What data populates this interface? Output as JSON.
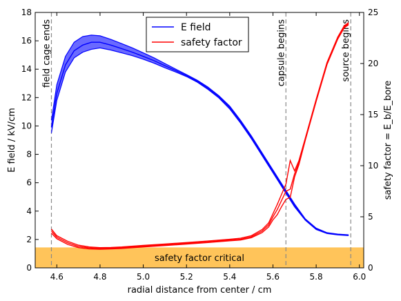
{
  "chart_data": {
    "type": "line",
    "xlabel": "radial distance from center / cm",
    "ylabel_left": "E field / kV/cm",
    "ylabel_right": "safety factor = E_b/E_bore",
    "xlim": [
      4.5,
      6.02
    ],
    "ylim_left": [
      0,
      18
    ],
    "ylim_right": [
      0,
      25
    ],
    "x_ticks": [
      4.6,
      4.8,
      5.0,
      5.2,
      5.4,
      5.6,
      5.8,
      6.0
    ],
    "x_tick_labels": [
      "4.6",
      "4.8",
      "5.0",
      "5.2",
      "5.4",
      "5.6",
      "5.8",
      "6.0"
    ],
    "y_ticks_left": [
      0,
      2,
      4,
      6,
      8,
      10,
      12,
      14,
      16,
      18
    ],
    "y_ticks_right": [
      0,
      5,
      10,
      15,
      20,
      25
    ],
    "legend_position": "top-center",
    "grid": false,
    "series": [
      {
        "name": "E field",
        "axis": "left",
        "color": "#0000ff",
        "band_color": "#6a6aff",
        "x": [
          4.575,
          4.6,
          4.64,
          4.68,
          4.72,
          4.76,
          4.8,
          4.85,
          4.9,
          4.95,
          5.0,
          5.05,
          5.1,
          5.15,
          5.2,
          5.25,
          5.3,
          5.35,
          5.4,
          5.45,
          5.5,
          5.55,
          5.6,
          5.65,
          5.7,
          5.75,
          5.8,
          5.85,
          5.9,
          5.95
        ],
        "y": [
          9.9,
          12.3,
          14.3,
          15.3,
          15.7,
          15.9,
          15.9,
          15.7,
          15.45,
          15.2,
          14.9,
          14.6,
          14.25,
          13.9,
          13.55,
          13.15,
          12.65,
          12.05,
          11.3,
          10.3,
          9.2,
          8.0,
          6.8,
          5.6,
          4.4,
          3.4,
          2.75,
          2.45,
          2.35,
          2.3
        ],
        "y_low": [
          9.5,
          11.8,
          13.8,
          14.8,
          15.2,
          15.4,
          15.5,
          15.35,
          15.15,
          14.95,
          14.7,
          14.42,
          14.1,
          13.8,
          13.48,
          13.08,
          12.57,
          11.97,
          11.2,
          10.2,
          9.1,
          7.9,
          6.7,
          5.5,
          4.3,
          3.35,
          2.7,
          2.42,
          2.32,
          2.27
        ],
        "y_high": [
          10.4,
          12.9,
          14.9,
          15.9,
          16.3,
          16.4,
          16.35,
          16.1,
          15.8,
          15.5,
          15.15,
          14.8,
          14.4,
          14.0,
          13.62,
          13.22,
          12.73,
          12.13,
          11.4,
          10.4,
          9.3,
          8.1,
          6.9,
          5.7,
          4.5,
          3.45,
          2.8,
          2.48,
          2.38,
          2.33
        ]
      },
      {
        "name": "safety factor",
        "axis": "right",
        "color": "#ff0000",
        "x": [
          4.575,
          4.6,
          4.65,
          4.7,
          4.75,
          4.8,
          4.85,
          4.9,
          5.0,
          5.1,
          5.2,
          5.3,
          5.4,
          5.45,
          5.5,
          5.55,
          5.58,
          5.6,
          5.62,
          5.64,
          5.66,
          5.68,
          5.7,
          5.72,
          5.75,
          5.8,
          5.85,
          5.9,
          5.93,
          5.95
        ],
        "y": [
          3.6,
          3.0,
          2.45,
          2.1,
          1.95,
          1.9,
          1.92,
          1.97,
          2.12,
          2.25,
          2.4,
          2.55,
          2.72,
          2.8,
          3.05,
          3.6,
          4.2,
          5.0,
          5.7,
          6.6,
          7.5,
          7.7,
          9.2,
          10.3,
          12.6,
          16.4,
          20.0,
          22.5,
          23.6,
          23.9
        ],
        "y_low": [
          3.4,
          2.85,
          2.3,
          1.98,
          1.85,
          1.82,
          1.85,
          1.9,
          2.05,
          2.18,
          2.33,
          2.48,
          2.65,
          2.72,
          2.95,
          3.45,
          4.0,
          4.7,
          5.2,
          6.0,
          6.7,
          6.9,
          8.9,
          10.1,
          12.5,
          16.3,
          19.9,
          22.4,
          23.5,
          23.8
        ],
        "y_high": [
          3.8,
          3.15,
          2.6,
          2.22,
          2.05,
          1.98,
          2.0,
          2.05,
          2.2,
          2.33,
          2.48,
          2.63,
          2.8,
          2.9,
          3.15,
          3.75,
          4.4,
          5.3,
          6.2,
          7.2,
          8.2,
          10.5,
          9.5,
          10.5,
          12.7,
          16.5,
          20.1,
          22.6,
          23.7,
          24.0
        ]
      }
    ],
    "critical_band": {
      "label": "safety factor critical",
      "right_axis_max": 2.0,
      "color": "#ffc45a"
    },
    "vlines": [
      {
        "x": 4.575,
        "label": "field cage ends"
      },
      {
        "x": 5.66,
        "label": "capsule begins"
      },
      {
        "x": 5.96,
        "label": "source begins"
      }
    ]
  }
}
